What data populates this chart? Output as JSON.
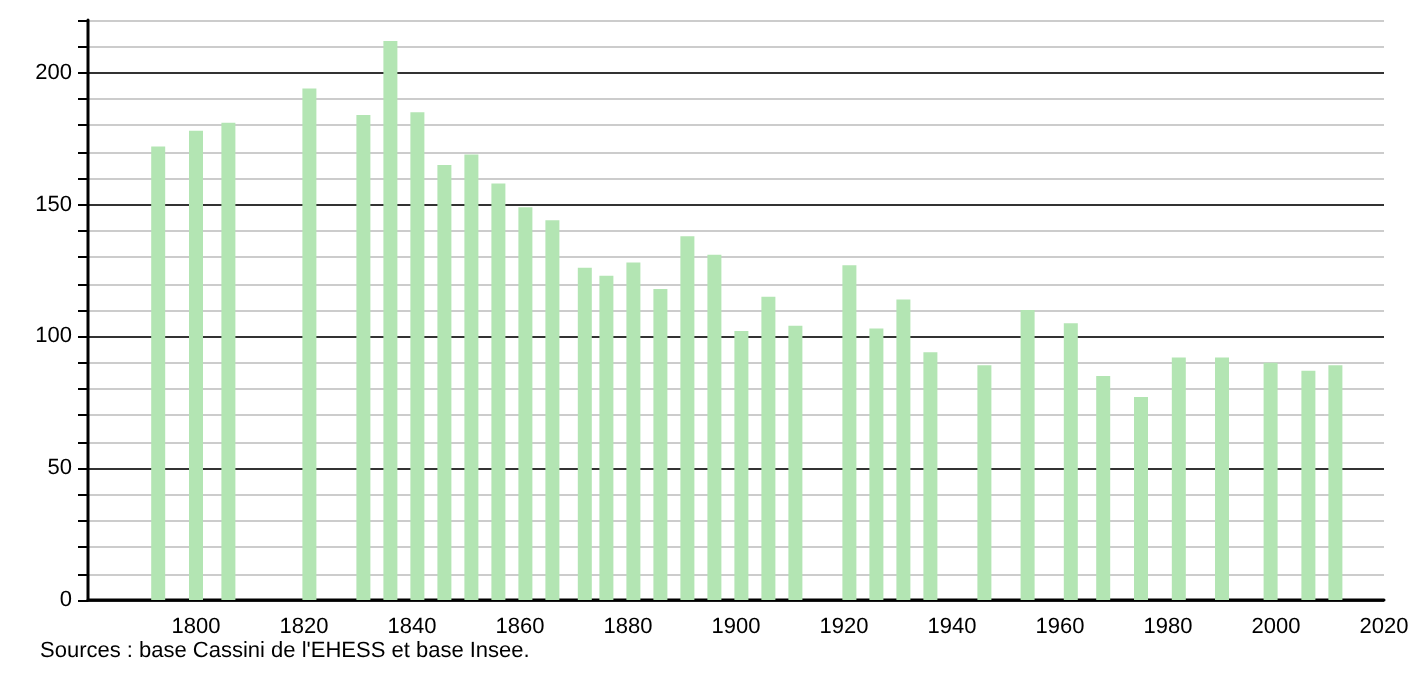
{
  "chart_data": {
    "type": "bar",
    "x": [
      1793,
      1800,
      1806,
      1821,
      1831,
      1836,
      1841,
      1846,
      1851,
      1856,
      1861,
      1866,
      1872,
      1876,
      1881,
      1886,
      1891,
      1896,
      1901,
      1906,
      1911,
      1921,
      1926,
      1931,
      1936,
      1946,
      1954,
      1962,
      1968,
      1975,
      1982,
      1990,
      1999,
      2006,
      2011
    ],
    "values": [
      172,
      178,
      181,
      194,
      184,
      212,
      185,
      165,
      169,
      158,
      149,
      144,
      126,
      123,
      128,
      118,
      138,
      131,
      102,
      115,
      104,
      127,
      103,
      114,
      94,
      89,
      110,
      105,
      85,
      77,
      92,
      92,
      90,
      87,
      89
    ],
    "color": "#b3e5b3",
    "xlim": [
      1780,
      2020
    ],
    "xticks": [
      1800,
      1820,
      1840,
      1860,
      1880,
      1900,
      1920,
      1940,
      1960,
      1980,
      2000,
      2020
    ],
    "ylim": [
      0,
      220
    ],
    "yticks": [
      0,
      {
        "value": 10,
        "label": null
      },
      {
        "value": 20,
        "label": null
      },
      {
        "value": 30,
        "label": null
      },
      {
        "value": 40,
        "label": null
      },
      50,
      {
        "value": 60,
        "label": null
      },
      {
        "value": 70,
        "label": null
      },
      {
        "value": 80,
        "label": null
      },
      {
        "value": 90,
        "label": null
      },
      100,
      {
        "value": 110,
        "label": null
      },
      {
        "value": 120,
        "label": null
      },
      {
        "value": 130,
        "label": null
      },
      {
        "value": 140,
        "label": null
      },
      150,
      {
        "value": 160,
        "label": null
      },
      {
        "value": 170,
        "label": null
      },
      {
        "value": 180,
        "label": null
      },
      {
        "value": 190,
        "label": null
      },
      200,
      {
        "value": 210,
        "label": null
      },
      {
        "value": 220,
        "label": null
      }
    ],
    "grid": "y",
    "annotations": [
      "Sources : base Cassini de l'EHESS et base Insee."
    ]
  }
}
